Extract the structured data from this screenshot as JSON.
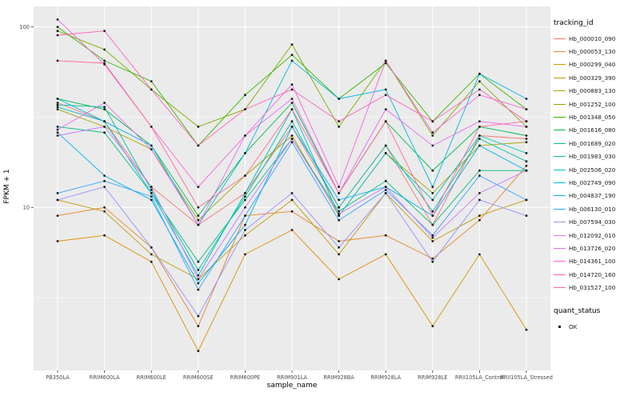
{
  "chart_data": {
    "type": "line",
    "title": "",
    "xlabel": "sample_name",
    "ylabel": "FPKM + 1",
    "yscale": "log10",
    "ylim": [
      1.25,
      130
    ],
    "yticks": [
      10,
      100
    ],
    "yminor": [
      3.162,
      31.62
    ],
    "legend_title": "tracking_id",
    "legend2_title": "quant_status",
    "legend2_items": [
      {
        "label": "OK",
        "marker": "point"
      }
    ],
    "panel_bg": "#EBEBEB",
    "grid_color": "#FFFFFF",
    "point_color": "#1A1A1A",
    "tick_text_color": "#4D4D4D",
    "x_categories": [
      "PB350LA",
      "RRIM600LA",
      "RRIM600LE",
      "RRIM600SE",
      "RRIM600PE",
      "RRIM901LA",
      "RRIM928BA",
      "RRIM928LA",
      "RRIM928LE",
      "RRII105LA_Control",
      "RRII105LA_Stressed"
    ],
    "series": [
      {
        "name": "Hb_000010_090",
        "color": "#F8766D",
        "values": [
          38,
          30,
          13,
          8.0,
          12,
          28,
          10,
          22,
          8.0,
          25,
          24
        ]
      },
      {
        "name": "Hb_000053_130",
        "color": "#E88526",
        "values": [
          9.0,
          10,
          6.0,
          2.2,
          9.0,
          9.5,
          6.5,
          7.0,
          5.2,
          8.5,
          17
        ]
      },
      {
        "name": "Hb_000299_040",
        "color": "#D89000",
        "values": [
          6.5,
          7.0,
          5.0,
          1.6,
          5.5,
          7.5,
          4.0,
          5.5,
          2.2,
          5.5,
          2.1
        ]
      },
      {
        "name": "Hb_000329_390",
        "color": "#C09B00",
        "values": [
          11,
          9.5,
          5.5,
          4.0,
          7.0,
          11,
          5.5,
          12,
          6.5,
          9.0,
          11
        ]
      },
      {
        "name": "Hb_000883_130",
        "color": "#A3A500",
        "values": [
          35,
          28,
          21,
          8.5,
          15,
          25,
          9.0,
          20,
          12,
          22,
          23
        ]
      },
      {
        "name": "Hb_001252_100",
        "color": "#7CAE00",
        "values": [
          95,
          75,
          45,
          28,
          35,
          80,
          28,
          65,
          25,
          50,
          28
        ]
      },
      {
        "name": "Hb_001348_050",
        "color": "#39B600",
        "values": [
          100,
          65,
          50,
          22,
          42,
          70,
          40,
          63,
          30,
          55,
          35
        ]
      },
      {
        "name": "Hb_001616_080",
        "color": "#00BB4E",
        "values": [
          40,
          35,
          22,
          9.0,
          20,
          38,
          12,
          30,
          16,
          28,
          25
        ]
      },
      {
        "name": "Hb_001689_020",
        "color": "#00BF7D",
        "values": [
          28,
          26,
          12,
          5.0,
          11,
          24,
          9.5,
          14,
          8.0,
          16,
          16
        ]
      },
      {
        "name": "Hb_001983_030",
        "color": "#00C1A3",
        "values": [
          37,
          36,
          12.5,
          4.5,
          11.5,
          30,
          10,
          22,
          9.5,
          24,
          18
        ]
      },
      {
        "name": "Hb_002506_020",
        "color": "#00BFC4",
        "values": [
          36,
          30,
          12,
          4.2,
          12,
          35,
          9.0,
          20,
          11,
          25,
          20
        ]
      },
      {
        "name": "Hb_002749_090",
        "color": "#00BAE0",
        "values": [
          40,
          30,
          22,
          8.0,
          20,
          65,
          40,
          45,
          13,
          55,
          40
        ]
      },
      {
        "name": "Hb_004837_190",
        "color": "#00B0F6",
        "values": [
          26,
          15,
          11,
          3.8,
          8.0,
          28,
          11,
          13,
          9.0,
          22,
          16
        ]
      },
      {
        "name": "Hb_006130_010",
        "color": "#35A2FF",
        "values": [
          12,
          14,
          11.5,
          3.5,
          9.0,
          23,
          8.5,
          12.5,
          7.0,
          15,
          11
        ]
      },
      {
        "name": "Hb_007594_030",
        "color": "#9590FF",
        "values": [
          11,
          13,
          6.0,
          2.5,
          7.5,
          12,
          6.0,
          12,
          5.0,
          11,
          9.0
        ]
      },
      {
        "name": "Hb_012092_010",
        "color": "#C77CFF",
        "values": [
          25,
          28,
          13,
          4.0,
          10,
          24,
          9.2,
          13,
          6.8,
          12,
          16
        ]
      },
      {
        "name": "Hb_013726_020",
        "color": "#E76BF3",
        "values": [
          27,
          38,
          21,
          8.0,
          25,
          40,
          12,
          35,
          22,
          30,
          28
        ]
      },
      {
        "name": "Hb_014361_100",
        "color": "#FA62DB",
        "values": [
          110,
          62,
          28,
          13,
          25,
          48,
          13,
          65,
          26,
          42,
          35
        ]
      },
      {
        "name": "Hb_014720_160",
        "color": "#FF62BC",
        "values": [
          90,
          95,
          45,
          22,
          35,
          45,
          30,
          42,
          30,
          45,
          30
        ]
      },
      {
        "name": "Hb_031527_100",
        "color": "#FF6A98",
        "values": [
          65,
          63,
          28,
          10,
          15,
          35,
          12,
          30,
          9.0,
          28,
          30
        ]
      }
    ]
  }
}
